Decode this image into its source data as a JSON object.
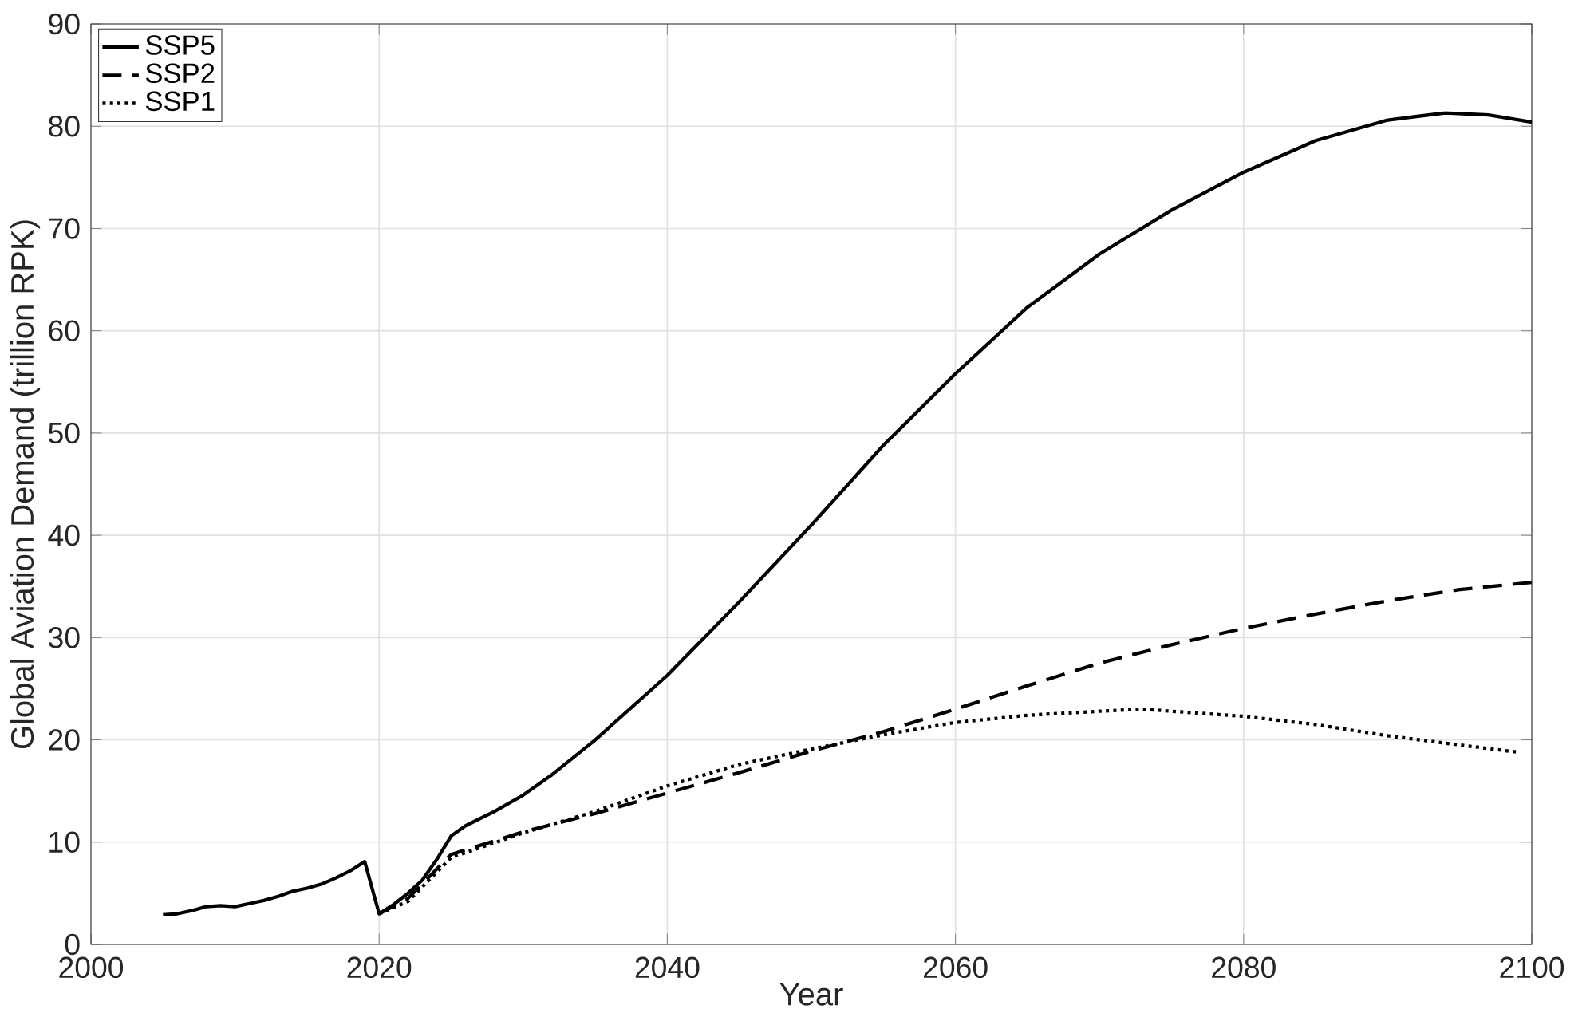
{
  "chart_data": {
    "type": "line",
    "xlabel": "Year",
    "ylabel": "Global Aviation Demand (trillion RPK)",
    "xlim": [
      2000,
      2100
    ],
    "ylim": [
      0,
      90
    ],
    "xticks": [
      2000,
      2020,
      2040,
      2060,
      2080,
      2100
    ],
    "yticks": [
      0,
      10,
      20,
      30,
      40,
      50,
      60,
      70,
      80,
      90
    ],
    "grid": true,
    "legend": "top left",
    "series": [
      {
        "name": "SSP5",
        "color": "#000000",
        "line_style": "solid",
        "x": [
          2005,
          2006,
          2007,
          2008,
          2009,
          2010,
          2011,
          2012,
          2013,
          2014,
          2015,
          2016,
          2017,
          2018,
          2019,
          2020,
          2021,
          2022,
          2023,
          2024,
          2025,
          2026,
          2028,
          2030,
          2032,
          2035,
          2040,
          2045,
          2050,
          2055,
          2060,
          2065,
          2070,
          2075,
          2080,
          2085,
          2090,
          2094,
          2097,
          2100
        ],
        "values": [
          2.9,
          3.0,
          3.3,
          3.7,
          3.8,
          3.7,
          4.0,
          4.3,
          4.7,
          5.2,
          5.5,
          5.9,
          6.5,
          7.2,
          8.1,
          3.0,
          3.9,
          5.0,
          6.3,
          8.3,
          10.6,
          11.6,
          13.0,
          14.6,
          16.6,
          20.0,
          26.3,
          33.5,
          41.0,
          48.8,
          55.8,
          62.3,
          67.5,
          71.8,
          75.5,
          78.6,
          80.6,
          81.3,
          81.1,
          80.4
        ]
      },
      {
        "name": "SSP2",
        "color": "#000000",
        "line_style": "dashed",
        "x": [
          2020,
          2022,
          2025,
          2030,
          2035,
          2040,
          2045,
          2050,
          2055,
          2060,
          2065,
          2070,
          2075,
          2080,
          2085,
          2090,
          2095,
          2100
        ],
        "values": [
          3.0,
          4.5,
          8.8,
          11.0,
          12.8,
          14.8,
          16.8,
          18.9,
          20.8,
          23.0,
          25.3,
          27.5,
          29.3,
          30.9,
          32.3,
          33.6,
          34.7,
          35.4
        ]
      },
      {
        "name": "SSP1",
        "color": "#000000",
        "line_style": "dotted",
        "x": [
          2020,
          2022,
          2025,
          2030,
          2035,
          2040,
          2045,
          2050,
          2055,
          2060,
          2065,
          2070,
          2073,
          2080,
          2085,
          2090,
          2095,
          2099
        ],
        "values": [
          3.0,
          4.2,
          8.5,
          10.9,
          13.0,
          15.5,
          17.6,
          19.1,
          20.5,
          21.7,
          22.4,
          22.8,
          23.0,
          22.3,
          21.5,
          20.4,
          19.5,
          18.8
        ]
      }
    ]
  }
}
